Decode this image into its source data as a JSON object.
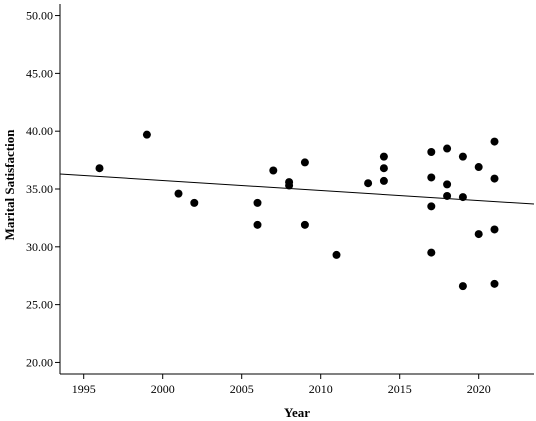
{
  "chart_data": {
    "type": "scatter",
    "title": "",
    "xlabel": "Year",
    "ylabel": "Marital Satisfaction",
    "xlim": [
      1993.5,
      2023.5
    ],
    "ylim": [
      19,
      51
    ],
    "x_ticks": [
      1995,
      2000,
      2005,
      2010,
      2015,
      2020
    ],
    "x_tick_labels": [
      "1995",
      "2000",
      "2005",
      "2010",
      "2015",
      "2020"
    ],
    "y_ticks": [
      20,
      25,
      30,
      35,
      40,
      45,
      50
    ],
    "y_tick_labels": [
      "20.00",
      "25.00",
      "30.00",
      "35.00",
      "40.00",
      "45.00",
      "50.00"
    ],
    "grid": false,
    "legend": "none",
    "point_color": "#000000",
    "fit_line": {
      "x": [
        1993.5,
        2023.5
      ],
      "y": [
        36.3,
        33.7
      ],
      "color": "#000000"
    },
    "points": [
      {
        "x": 1996,
        "y": 36.8
      },
      {
        "x": 1999,
        "y": 39.7
      },
      {
        "x": 2001,
        "y": 34.6
      },
      {
        "x": 2002,
        "y": 33.8
      },
      {
        "x": 2006,
        "y": 33.8
      },
      {
        "x": 2006,
        "y": 31.9
      },
      {
        "x": 2007,
        "y": 36.6
      },
      {
        "x": 2008,
        "y": 35.6
      },
      {
        "x": 2008,
        "y": 35.3
      },
      {
        "x": 2009,
        "y": 37.3
      },
      {
        "x": 2009,
        "y": 31.9
      },
      {
        "x": 2011,
        "y": 29.3
      },
      {
        "x": 2013,
        "y": 35.5
      },
      {
        "x": 2014,
        "y": 37.8
      },
      {
        "x": 2014,
        "y": 36.8
      },
      {
        "x": 2014,
        "y": 35.7
      },
      {
        "x": 2017,
        "y": 38.2
      },
      {
        "x": 2017,
        "y": 36.0
      },
      {
        "x": 2017,
        "y": 33.5
      },
      {
        "x": 2017,
        "y": 29.5
      },
      {
        "x": 2018,
        "y": 38.5
      },
      {
        "x": 2018,
        "y": 35.4
      },
      {
        "x": 2018,
        "y": 34.4
      },
      {
        "x": 2019,
        "y": 37.8
      },
      {
        "x": 2019,
        "y": 34.3
      },
      {
        "x": 2019,
        "y": 26.6
      },
      {
        "x": 2020,
        "y": 36.9
      },
      {
        "x": 2020,
        "y": 31.1
      },
      {
        "x": 2021,
        "y": 39.1
      },
      {
        "x": 2021,
        "y": 35.9
      },
      {
        "x": 2021,
        "y": 31.5
      },
      {
        "x": 2021,
        "y": 26.8
      }
    ]
  }
}
